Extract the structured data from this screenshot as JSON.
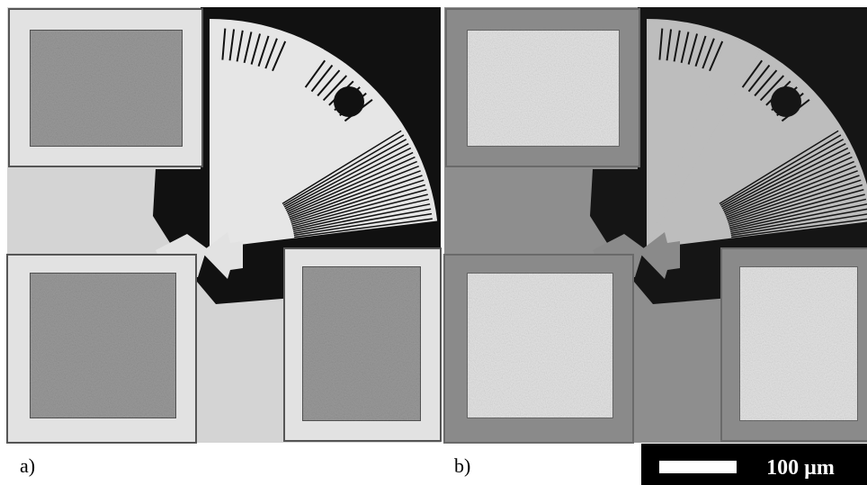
{
  "panels": [
    {
      "label": "a)"
    },
    {
      "label": "b)"
    }
  ],
  "scale_bar": {
    "label": "100 µm"
  }
}
